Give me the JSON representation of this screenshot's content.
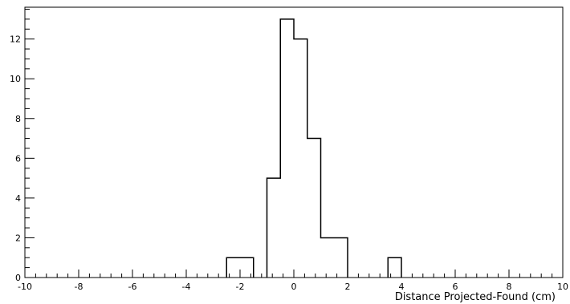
{
  "chart_data": {
    "type": "bar",
    "style": "step-histogram",
    "title": "",
    "xlabel": "Distance Projected-Found (cm)",
    "ylabel": "",
    "xlim": [
      -10,
      10
    ],
    "ylim": [
      0,
      13.6
    ],
    "x_major_ticks": [
      -10,
      -8,
      -6,
      -4,
      -2,
      0,
      2,
      4,
      6,
      8,
      10
    ],
    "y_major_ticks": [
      0,
      2,
      4,
      6,
      8,
      10,
      12
    ],
    "grid": false,
    "legend": "none",
    "line_color": "#000000",
    "background": "#ffffff",
    "bins": [
      {
        "x_low": -2.5,
        "x_high": -1.5,
        "count": 1
      },
      {
        "x_low": -1.0,
        "x_high": -0.5,
        "count": 5
      },
      {
        "x_low": -0.5,
        "x_high": 0.0,
        "count": 13
      },
      {
        "x_low": 0.0,
        "x_high": 0.5,
        "count": 12
      },
      {
        "x_low": 0.5,
        "x_high": 1.0,
        "count": 7
      },
      {
        "x_low": 1.0,
        "x_high": 2.0,
        "count": 2
      },
      {
        "x_low": 3.5,
        "x_high": 4.0,
        "count": 1
      }
    ]
  }
}
